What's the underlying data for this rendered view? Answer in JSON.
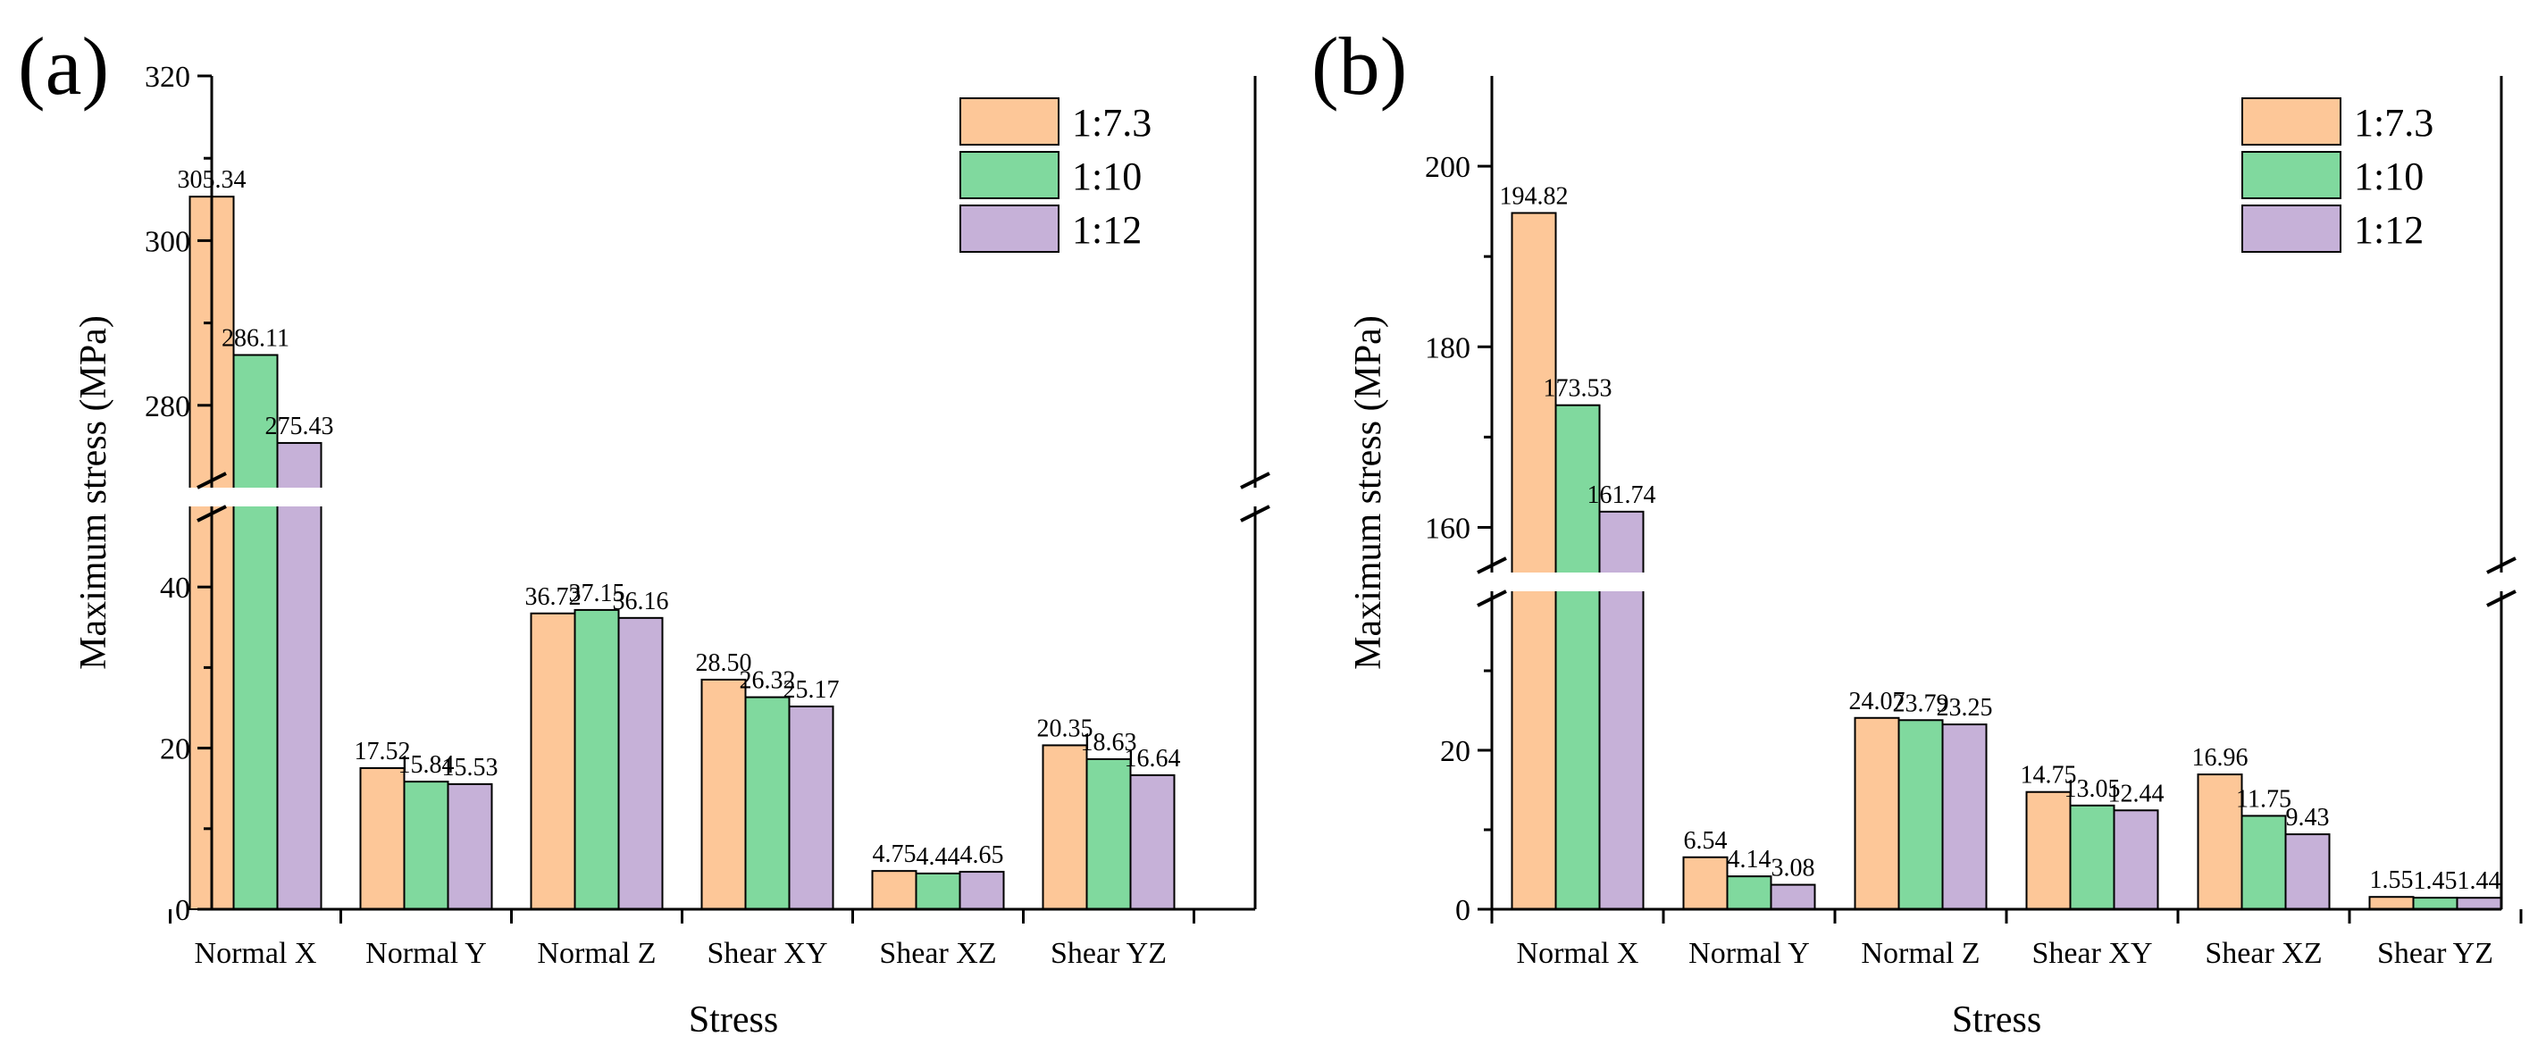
{
  "chart_data": [
    {
      "type": "bar",
      "panel_label": "(a)",
      "title": "",
      "xlabel": "Stress",
      "ylabel": "Maximum stress (MPa)",
      "categories": [
        "Normal X",
        "Normal Y",
        "Normal Z",
        "Shear XY",
        "Shear XZ",
        "Shear YZ"
      ],
      "series": [
        {
          "name": "1:7.3",
          "color": "#fdc798",
          "values": [
            305.34,
            17.52,
            36.72,
            28.5,
            4.75,
            20.35
          ],
          "labels": [
            "305.34",
            "17.52",
            "36.72",
            "28.50",
            "4.75",
            "20.35"
          ]
        },
        {
          "name": "1:10",
          "color": "#80d99e",
          "values": [
            286.11,
            15.84,
            37.15,
            26.32,
            4.44,
            18.63
          ],
          "labels": [
            "286.11",
            "15.84",
            "37.15",
            "26.32",
            "4.44",
            "18.63"
          ]
        },
        {
          "name": "1:12",
          "color": "#c6b1d8",
          "values": [
            275.43,
            15.53,
            36.16,
            25.17,
            4.65,
            16.64
          ],
          "labels": [
            "275.43",
            "15.53",
            "36.16",
            "25.17",
            "4.65",
            "16.64"
          ]
        }
      ],
      "axis_break": {
        "lower_range": [
          0,
          50
        ],
        "upper_range": [
          270,
          320
        ]
      },
      "lower_ticks": [
        0,
        20,
        40
      ],
      "upper_ticks": [
        280,
        300,
        320
      ],
      "legend_position": "top-right"
    },
    {
      "type": "bar",
      "panel_label": "(b)",
      "title": "",
      "xlabel": "Stress",
      "ylabel": "Maximum stress (MPa)",
      "categories": [
        "Normal X",
        "Normal Y",
        "Normal Z",
        "Shear XY",
        "Shear XZ",
        "Shear YZ"
      ],
      "series": [
        {
          "name": "1:7.3",
          "color": "#fdc798",
          "values": [
            194.82,
            6.54,
            24.07,
            14.75,
            16.96,
            1.55
          ],
          "labels": [
            "194.82",
            "6.54",
            "24.07",
            "14.75",
            "16.96",
            "1.55"
          ]
        },
        {
          "name": "1:10",
          "color": "#80d99e",
          "values": [
            173.53,
            4.14,
            23.79,
            13.05,
            11.75,
            1.45
          ],
          "labels": [
            "173.53",
            "4.14",
            "23.79",
            "13.05",
            "11.75",
            "1.45"
          ]
        },
        {
          "name": "1:12",
          "color": "#c6b1d8",
          "values": [
            161.74,
            3.08,
            23.25,
            12.44,
            9.43,
            1.44
          ],
          "labels": [
            "161.74",
            "3.08",
            "23.25",
            "12.44",
            "9.43",
            "1.44"
          ]
        }
      ],
      "axis_break": {
        "lower_range": [
          0,
          40
        ],
        "upper_range": [
          155,
          210
        ]
      },
      "lower_ticks": [
        0,
        20
      ],
      "upper_ticks": [
        160,
        180,
        200
      ],
      "legend_position": "top-right"
    }
  ]
}
